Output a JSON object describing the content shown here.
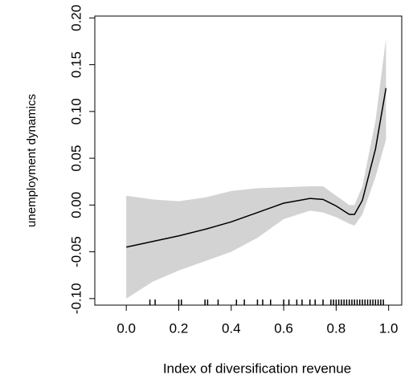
{
  "chart_data": {
    "type": "line",
    "xlabel": "Index of diversification revenue",
    "ylabel": "unemployment dynamics",
    "x": [
      0,
      0.1,
      0.2,
      0.3,
      0.4,
      0.5,
      0.6,
      0.7,
      0.75,
      0.8,
      0.85,
      0.87,
      0.9,
      0.95,
      0.99
    ],
    "fit": [
      -0.045,
      -0.039,
      -0.033,
      -0.026,
      -0.018,
      -0.008,
      0.002,
      0.007,
      0.006,
      -0.001,
      -0.01,
      -0.01,
      0.005,
      0.06,
      0.125
    ],
    "upper": [
      0.01,
      0.006,
      0.004,
      0.008,
      0.015,
      0.018,
      0.019,
      0.02,
      0.02,
      0.01,
      0.0,
      0.0,
      0.02,
      0.09,
      0.178
    ],
    "lower": [
      -0.1,
      -0.082,
      -0.07,
      -0.06,
      -0.05,
      -0.035,
      -0.015,
      -0.006,
      -0.008,
      -0.013,
      -0.02,
      -0.022,
      -0.01,
      0.03,
      0.07
    ],
    "rug": [
      0.09,
      0.11,
      0.2,
      0.21,
      0.3,
      0.31,
      0.35,
      0.42,
      0.45,
      0.5,
      0.52,
      0.55,
      0.6,
      0.62,
      0.65,
      0.67,
      0.7,
      0.72,
      0.75,
      0.78,
      0.79,
      0.8,
      0.81,
      0.82,
      0.83,
      0.84,
      0.85,
      0.86,
      0.87,
      0.88,
      0.89,
      0.9,
      0.91,
      0.92,
      0.93,
      0.94,
      0.95,
      0.96,
      0.97,
      0.98
    ],
    "line_color": "#000000",
    "band_color": "#d3d3d3",
    "xlim": [
      -0.12,
      1.05
    ],
    "ylim": [
      -0.107,
      0.202
    ],
    "xticks": [
      {
        "value": 0,
        "label": "0.0"
      },
      {
        "value": 0.2,
        "label": "0.2"
      },
      {
        "value": 0.4,
        "label": "0.4"
      },
      {
        "value": 0.6,
        "label": "0.6"
      },
      {
        "value": 0.8,
        "label": "0.8"
      },
      {
        "value": 1,
        "label": "1.0"
      }
    ],
    "yticks": [
      {
        "value": -0.1,
        "label": "-0.10"
      },
      {
        "value": -0.05,
        "label": "-0.05"
      },
      {
        "value": 0,
        "label": "0.00"
      },
      {
        "value": 0.05,
        "label": "0.05"
      },
      {
        "value": 0.1,
        "label": "0.10"
      },
      {
        "value": 0.15,
        "label": "0.15"
      },
      {
        "value": 0.2,
        "label": "0.20"
      }
    ]
  }
}
